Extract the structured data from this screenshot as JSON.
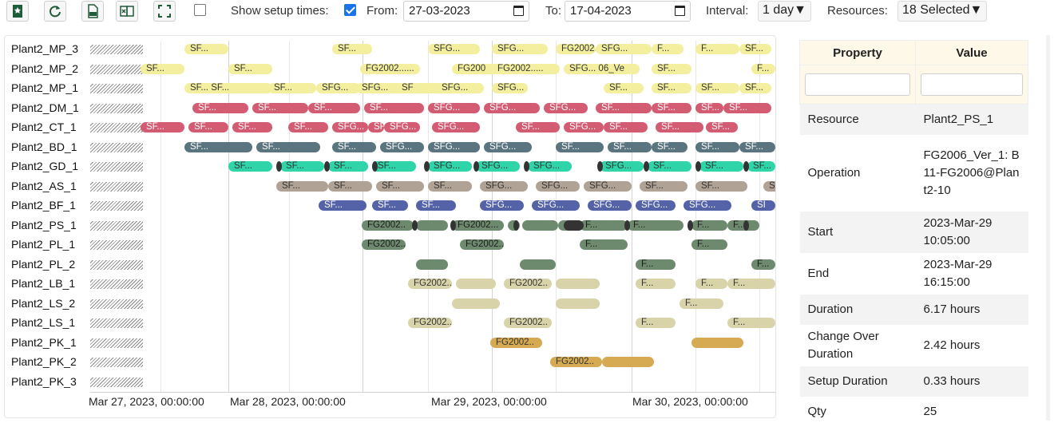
{
  "toolbar": {
    "show_setup_label": "Show setup times:",
    "from_label": "From:",
    "from_value": "27-03-2023",
    "to_label": "To:",
    "to_value": "17-04-2023",
    "interval_label": "Interval:",
    "interval_value": "1 day",
    "resources_label": "Resources:",
    "resources_value": "18 Selected",
    "buttons": [
      "bookmark-icon",
      "refresh-icon",
      "pdf-icon",
      "export-icon",
      "fullscreen-icon"
    ]
  },
  "gantt": {
    "resources": [
      "Plant2_MP_3",
      "Plant2_MP_2",
      "Plant2_MP_1",
      "Plant2_DM_1",
      "Plant2_CT_1",
      "Plant2_BD_1",
      "Plant2_GD_1",
      "Plant2_AS_1",
      "Plant2_BF_1",
      "Plant2_PS_1",
      "Plant2_PL_1",
      "Plant2_PL_2",
      "Plant2_LB_1",
      "Plant2_LS_2",
      "Plant2_LS_1",
      "Plant2_PK_1",
      "Plant2_PK_2",
      "Plant2_PK_3"
    ],
    "axis_labels": [
      "Mar 27, 2023, 00:00:00",
      "Mar 28, 2023, 00:00:00",
      "Mar 29, 2023, 00:00:00",
      "Mar 30, 2023, 00:00:00"
    ],
    "colors": {
      "yellow": "#f3ef9f",
      "red": "#d45c72",
      "slate": "#5b7580",
      "teal": "#2fd4a8",
      "taupe": "#b0a295",
      "blue": "#5462a8",
      "green": "#6e8a6e",
      "khaki": "#d9d3aa",
      "gold": "#d6aa52"
    }
  },
  "properties": {
    "header_property": "Property",
    "header_value": "Value",
    "rows": [
      {
        "property": "Resource",
        "value": "Plant2_PS_1"
      },
      {
        "property": "Operation",
        "value": "FG2006_Ver_1: B11-FG2006@Plant2-10"
      },
      {
        "property": "Start",
        "value": "2023-Mar-29 10:05:00"
      },
      {
        "property": "End",
        "value": "2023-Mar-29 16:15:00"
      },
      {
        "property": "Duration",
        "value": "6.17 hours"
      },
      {
        "property": "Change Over Duration",
        "value": "2.42 hours"
      },
      {
        "property": "Setup Duration",
        "value": "0.33 hours"
      },
      {
        "property": "Qty",
        "value": "25"
      }
    ]
  }
}
